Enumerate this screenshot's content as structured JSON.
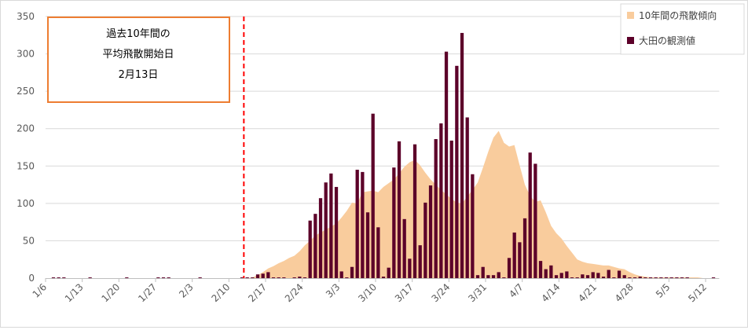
{
  "chart_data": {
    "type": "bar",
    "first_date": "1/6",
    "days": 128,
    "ylim": [
      0,
      350
    ],
    "yticks": [
      0,
      50,
      100,
      150,
      200,
      250,
      300,
      350
    ],
    "xtick_labels": [
      "1/6",
      "1/13",
      "1/20",
      "1/27",
      "2/3",
      "2/10",
      "2/17",
      "2/24",
      "3/3",
      "3/10",
      "3/17",
      "3/24",
      "3/31",
      "4/7",
      "4/14",
      "4/21",
      "4/28",
      "5/5",
      "5/12"
    ],
    "grid": true,
    "legend_position": "top-right",
    "series": [
      {
        "name": "10年間の飛散傾向",
        "type": "area",
        "color": "#F9CC9D",
        "values": [
          0,
          0,
          0,
          0,
          0,
          0,
          0,
          0,
          0,
          0,
          0,
          0,
          0,
          0,
          0,
          0,
          0,
          0,
          0,
          0,
          0,
          0,
          0,
          0,
          0,
          0,
          0,
          0,
          0,
          0,
          0,
          0,
          0,
          0,
          0,
          0,
          0,
          0,
          0,
          1,
          4,
          8,
          13,
          16,
          20,
          23,
          27,
          30,
          36,
          44,
          50,
          57,
          61,
          65,
          69,
          73,
          81,
          90,
          101,
          100,
          115,
          116,
          117,
          115,
          122,
          127,
          132,
          140,
          149,
          155,
          158,
          151,
          141,
          132,
          125,
          118,
          112,
          106,
          101,
          100,
          109,
          118,
          128,
          148,
          169,
          188,
          197,
          181,
          176,
          178,
          151,
          125,
          110,
          102,
          104,
          88,
          70,
          60,
          53,
          43,
          34,
          25,
          22,
          20,
          19,
          18,
          17,
          17,
          15,
          13,
          12,
          8,
          5,
          3,
          2,
          1,
          1,
          1,
          1,
          1,
          1,
          1,
          1,
          1,
          1,
          0,
          0,
          0
        ]
      },
      {
        "name": "大田の観測値",
        "type": "bar",
        "color": "#5C0029",
        "values": [
          0,
          1,
          1,
          1,
          0,
          0,
          0,
          0,
          1,
          0,
          0,
          0,
          0,
          0,
          0,
          1,
          0,
          0,
          0,
          0,
          0,
          1,
          1,
          1,
          0,
          0,
          0,
          0,
          0,
          1,
          0,
          0,
          0,
          0,
          0,
          0,
          0,
          1,
          1,
          1,
          5,
          6,
          8,
          1,
          1,
          1,
          0,
          1,
          2,
          1,
          77,
          86,
          107,
          128,
          140,
          122,
          9,
          1,
          15,
          145,
          142,
          88,
          220,
          68,
          2,
          14,
          148,
          183,
          79,
          26,
          179,
          44,
          101,
          124,
          186,
          207,
          303,
          184,
          284,
          328,
          215,
          139,
          4,
          15,
          4,
          4,
          8,
          1,
          27,
          61,
          48,
          80,
          168,
          153,
          23,
          12,
          17,
          4,
          7,
          9,
          1,
          1,
          5,
          4,
          8,
          7,
          2,
          11,
          1,
          10,
          4,
          1,
          1,
          2,
          1,
          1,
          1,
          1,
          1,
          1,
          1,
          1,
          1,
          0,
          0,
          0,
          0,
          1
        ]
      }
    ],
    "annotation": {
      "lines": [
        "過去10年間の",
        "平均飛散開始日",
        "2月13日"
      ],
      "marker_date_index": 38,
      "marker_color": "#FF0000",
      "box_color": "#ED7D31"
    }
  }
}
